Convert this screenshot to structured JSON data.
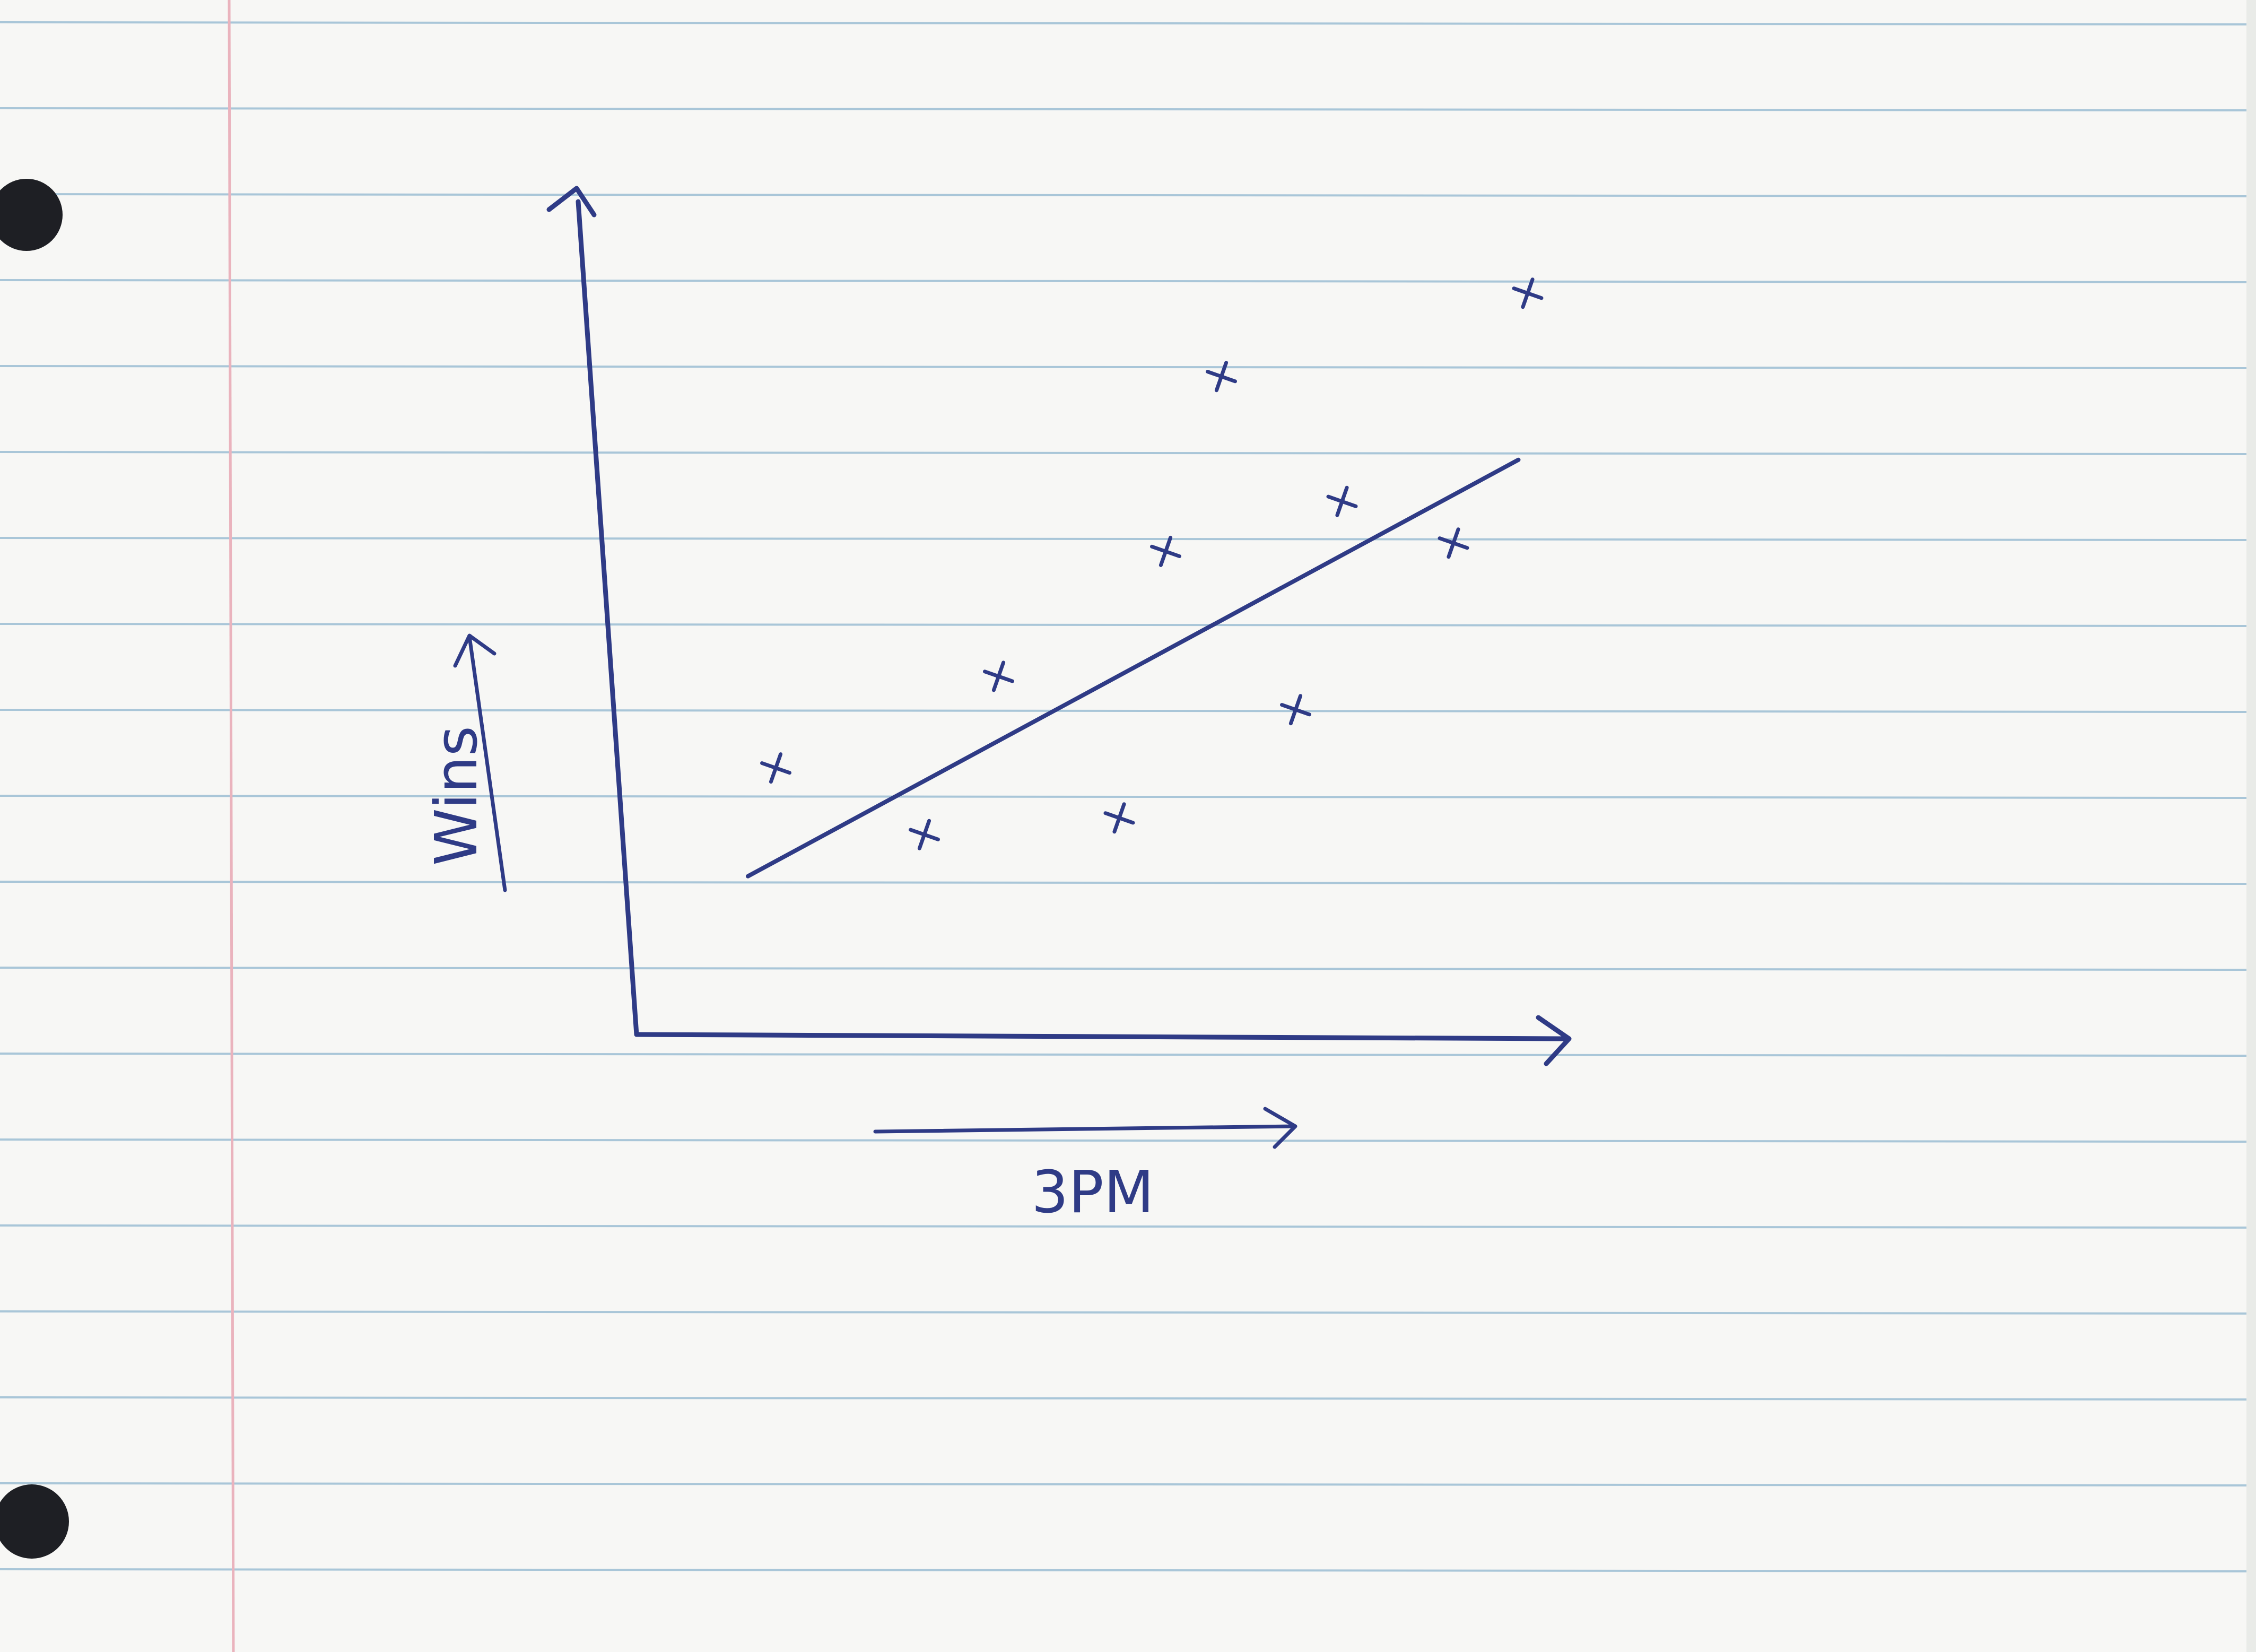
{
  "chart_data": {
    "type": "scatter",
    "title": "",
    "xlabel": "3PM",
    "ylabel": "Wins",
    "xlim": [
      0,
      10
    ],
    "ylim": [
      0,
      10
    ],
    "grid": false,
    "legend": "none",
    "points": [
      {
        "x": 1.5,
        "y": 3.2
      },
      {
        "x": 3.1,
        "y": 2.4
      },
      {
        "x": 3.9,
        "y": 4.3
      },
      {
        "x": 5.2,
        "y": 2.6
      },
      {
        "x": 5.7,
        "y": 5.8
      },
      {
        "x": 6.3,
        "y": 7.9
      },
      {
        "x": 7.1,
        "y": 3.9
      },
      {
        "x": 7.6,
        "y": 6.4
      },
      {
        "x": 8.8,
        "y": 5.9
      },
      {
        "x": 9.6,
        "y": 8.9
      }
    ],
    "trendline": [
      {
        "x": 1.2,
        "y": 1.9
      },
      {
        "x": 9.5,
        "y": 6.9
      }
    ]
  },
  "colors": {
    "ink": "#2f3b86",
    "paper": "#f7f7f5",
    "rule_line": "#a9c6d8",
    "margin_line": "#eab3bd"
  }
}
